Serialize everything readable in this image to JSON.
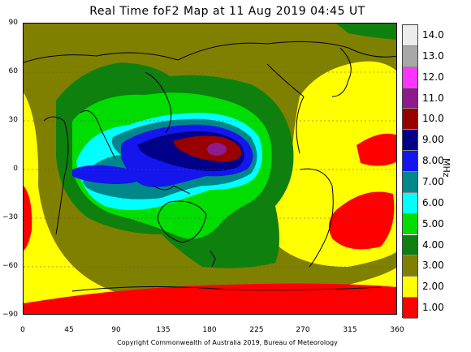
{
  "title": "Real Time foF2 Map at 11 Aug 2019 04:45 UT",
  "footer": "Copyright Commonwealth of Australia 2019, Bureau of Meteorology",
  "y_axis": {
    "ticks": [
      "90",
      "60",
      "30",
      "0",
      "−30",
      "−60",
      "−90"
    ]
  },
  "x_axis": {
    "ticks": [
      "0",
      "45",
      "90",
      "135",
      "180",
      "225",
      "270",
      "315",
      "360"
    ]
  },
  "legend": {
    "unit": "MHz",
    "items": [
      {
        "label": "14.0",
        "color": "#ececec"
      },
      {
        "label": "13.0",
        "color": "#a8a8a8"
      },
      {
        "label": "12.0",
        "color": "#ff33ff"
      },
      {
        "label": "11.0",
        "color": "#8e1a8e"
      },
      {
        "label": "10.0",
        "color": "#990000"
      },
      {
        "label": "9.00",
        "color": "#000088"
      },
      {
        "label": "8.00",
        "color": "#1515ee"
      },
      {
        "label": "7.00",
        "color": "#00878a"
      },
      {
        "label": "6.00",
        "color": "#00ffff"
      },
      {
        "label": "5.00",
        "color": "#00dd00"
      },
      {
        "label": "4.00",
        "color": "#0e800e"
      },
      {
        "label": "3.00",
        "color": "#808000"
      },
      {
        "label": "2.00",
        "color": "#ffff00"
      },
      {
        "label": "1.00",
        "color": "#ff0000"
      }
    ]
  }
}
